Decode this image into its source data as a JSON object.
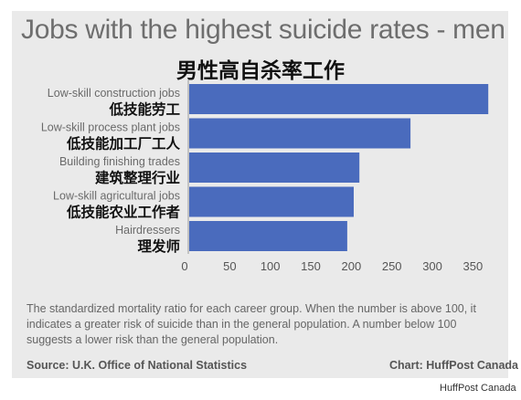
{
  "chart_data": {
    "type": "bar",
    "orientation": "horizontal",
    "title": "Jobs with the highest suicide rates - men",
    "subtitle": "男性高自杀率工作",
    "categories": [
      "Low-skill construction jobs",
      "Low-skill process plant jobs",
      "Building finishing trades",
      "Low-skill agricultural jobs",
      "Hairdressers"
    ],
    "categories_cn": [
      "低技能劳工",
      "低技能加工厂工人",
      "建筑整理行业",
      "低技能农业工作者",
      "理发师"
    ],
    "values": [
      369,
      273,
      210,
      203,
      195
    ],
    "xticks": [
      "0",
      "50",
      "100",
      "150",
      "200",
      "250",
      "300",
      "350"
    ],
    "xlim": [
      0,
      380
    ],
    "bar_color": "#4a6bbd",
    "grid": false
  },
  "note": "The standardized mortality ratio for each career group. When the number is above 100, it indicates a greater risk of suicide than in the general population. A number below 100 suggests a lower risk than the general population.",
  "source": "Source: U.K. Office of National Statistics",
  "credit": "Chart: HuffPost Canada",
  "watermark": "HuffPost Canada"
}
